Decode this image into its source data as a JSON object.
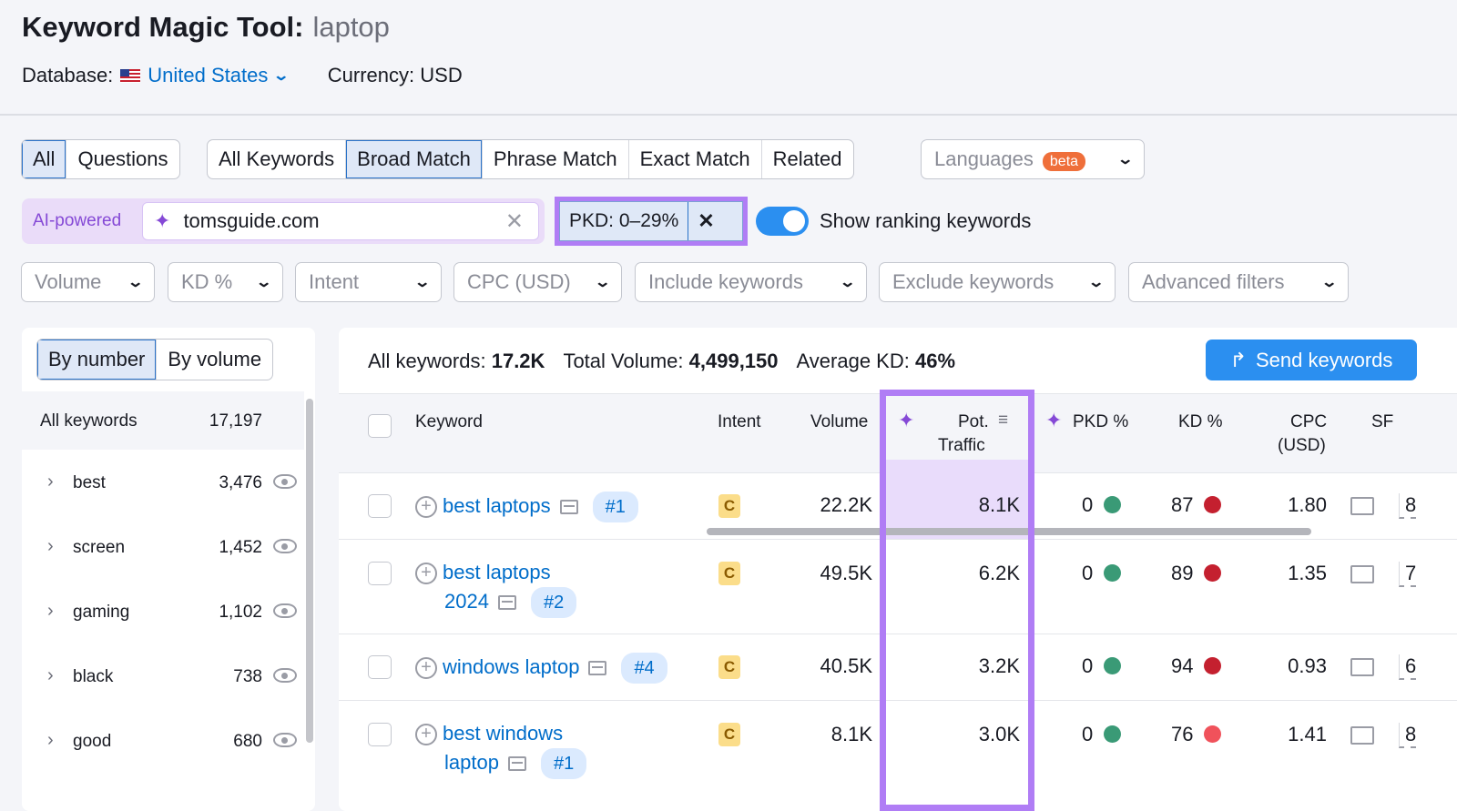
{
  "header": {
    "title": "Keyword Magic Tool:",
    "query": "laptop",
    "database_label": "Database:",
    "database": "United States",
    "currency": "Currency: USD"
  },
  "tabs_group1": [
    "All",
    "Questions"
  ],
  "tabs_group2": [
    "All Keywords",
    "Broad Match",
    "Phrase Match",
    "Exact Match",
    "Related"
  ],
  "active_tabs": [
    "All",
    "Broad Match"
  ],
  "languages": {
    "label": "Languages",
    "badge": "beta"
  },
  "ai": {
    "label": "AI-powered",
    "value": "tomsguide.com"
  },
  "pkd_filter": "PKD: 0–29%",
  "show_ranking": {
    "label": "Show ranking keywords",
    "on": true
  },
  "filters": [
    "Volume",
    "KD %",
    "Intent",
    "CPC (USD)",
    "Include keywords",
    "Exclude keywords",
    "Advanced filters"
  ],
  "left_panel": {
    "toggle": [
      "By number",
      "By volume"
    ],
    "all_label": "All keywords",
    "all_count": "17,197",
    "groups": [
      {
        "name": "best",
        "count": "3,476"
      },
      {
        "name": "screen",
        "count": "1,452"
      },
      {
        "name": "gaming",
        "count": "1,102"
      },
      {
        "name": "black",
        "count": "738"
      },
      {
        "name": "good",
        "count": "680"
      }
    ]
  },
  "stats": {
    "all_label": "All keywords:",
    "all": "17.2K",
    "vol_label": "Total Volume:",
    "vol": "4,499,150",
    "kd_label": "Average KD:",
    "kd": "46%"
  },
  "send_label": "Send keywords",
  "columns": {
    "keyword": "Keyword",
    "intent": "Intent",
    "volume": "Volume",
    "pot1": "Pot.",
    "pot2": "Traffic",
    "pkd": "PKD %",
    "kd": "KD %",
    "cpc1": "CPC",
    "cpc2": "(USD)",
    "sf": "SF"
  },
  "rows": [
    {
      "kw1": "best laptops",
      "kw2": "",
      "pos": "#1",
      "intent": "C",
      "volume": "22.2K",
      "pot": "8.1K",
      "pkd": "0",
      "kd": "87",
      "kd_color": "#c4202f",
      "cpc": "1.80",
      "sf": "8"
    },
    {
      "kw1": "best laptops",
      "kw2": "2024",
      "pos": "#2",
      "intent": "C",
      "volume": "49.5K",
      "pot": "6.2K",
      "pkd": "0",
      "kd": "89",
      "kd_color": "#c4202f",
      "cpc": "1.35",
      "sf": "7"
    },
    {
      "kw1": "windows laptop",
      "kw2": "",
      "pos": "#4",
      "intent": "C",
      "volume": "40.5K",
      "pot": "3.2K",
      "pkd": "0",
      "kd": "94",
      "kd_color": "#c4202f",
      "cpc": "0.93",
      "sf": "6"
    },
    {
      "kw1": "best windows",
      "kw2": "laptop",
      "pos": "#1",
      "intent": "C",
      "volume": "8.1K",
      "pot": "3.0K",
      "pkd": "0",
      "kd": "76",
      "kd_color": "#f0525b",
      "cpc": "1.41",
      "sf": "8"
    }
  ],
  "colors": {
    "accent": "#2b8ff0",
    "highlight": "#b07df5",
    "pkd_green": "#3a9a76"
  }
}
